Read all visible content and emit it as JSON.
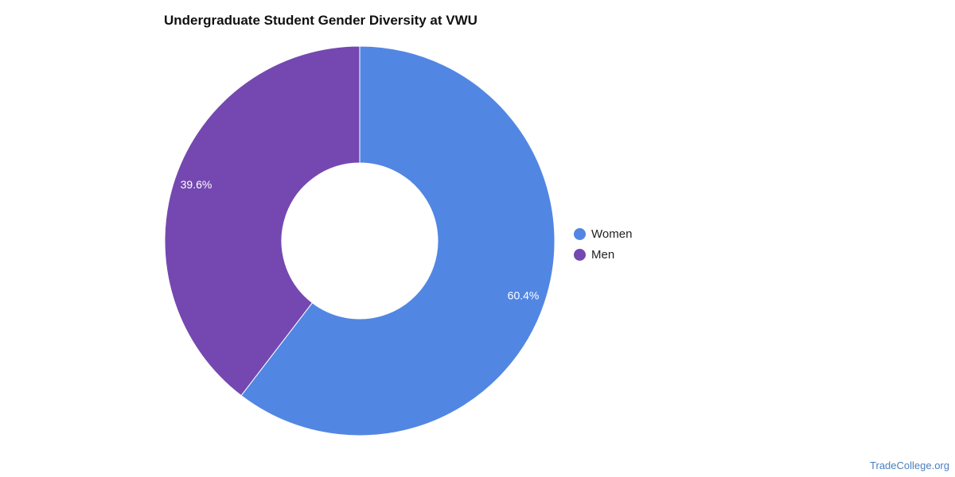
{
  "chart_data": {
    "type": "pie",
    "title": "Undergraduate Student Gender Diversity at VWU",
    "categories": [
      "Women",
      "Men"
    ],
    "values": [
      60.4,
      39.6
    ],
    "value_labels": [
      "60.4%",
      "39.6%"
    ],
    "colors": [
      "#5286e3",
      "#7448b0"
    ],
    "donut": true,
    "legend_position": "right"
  },
  "credit": {
    "text": "TradeCollege.org"
  }
}
